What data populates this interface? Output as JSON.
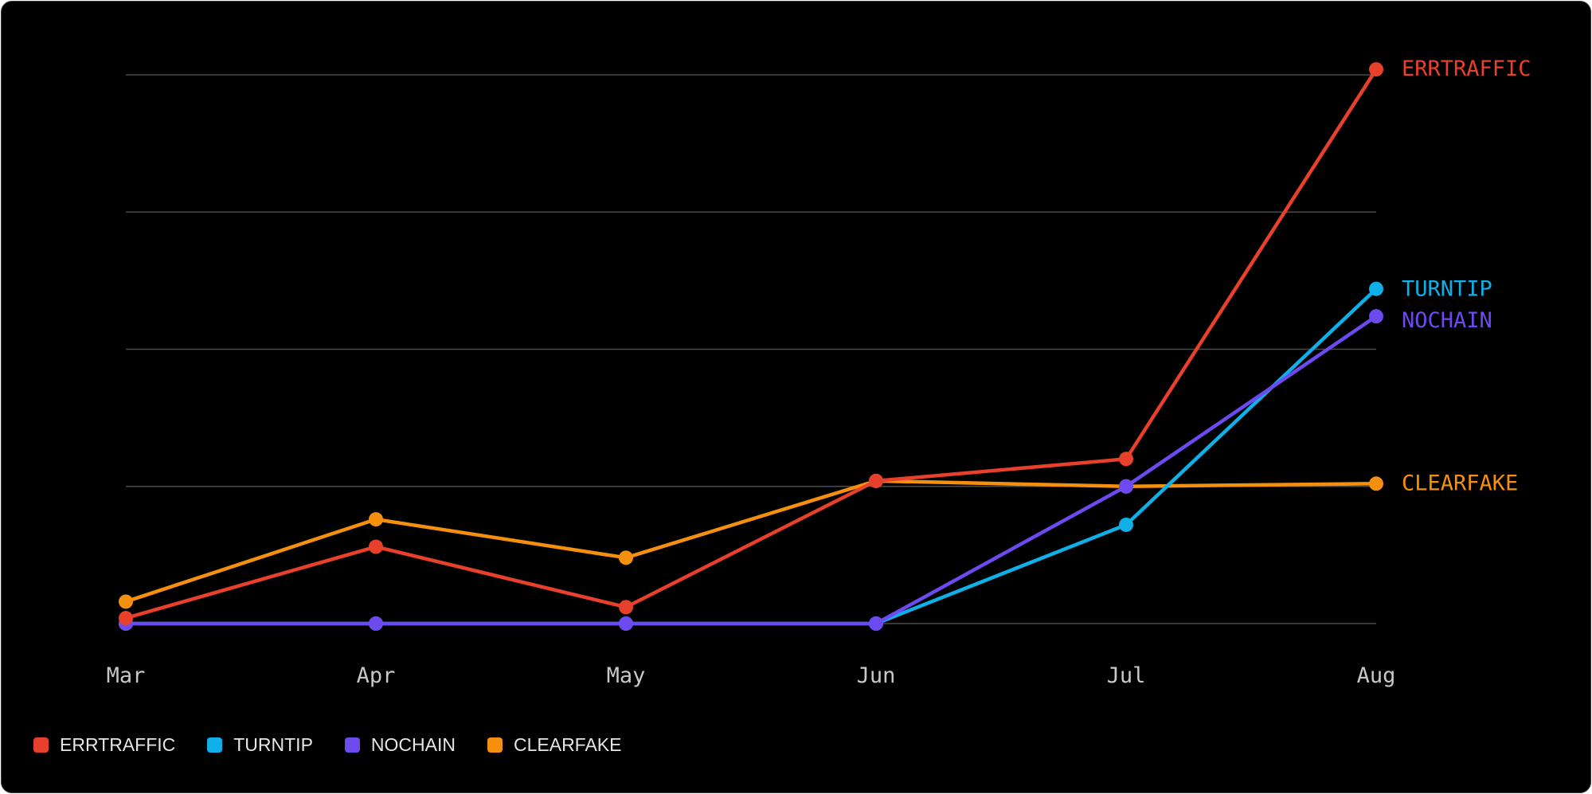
{
  "chart_data": {
    "type": "line",
    "title": "",
    "xlabel": "",
    "ylabel": "",
    "categories": [
      "Mar",
      "Apr",
      "May",
      "Jun",
      "Jul",
      "Aug"
    ],
    "ylim": [
      0,
      100
    ],
    "grid": true,
    "legend_position": "bottom-left",
    "series": [
      {
        "name": "ERRTRAFFIC",
        "color": "#e8402a",
        "values": [
          1,
          14,
          3,
          26,
          30,
          101
        ]
      },
      {
        "name": "TURNTIP",
        "color": "#0fb0e8",
        "values": [
          0,
          0,
          0,
          0,
          18,
          61
        ]
      },
      {
        "name": "NOCHAIN",
        "color": "#6d4af0",
        "values": [
          0,
          0,
          0,
          0,
          25,
          56
        ]
      },
      {
        "name": "CLEARFAKE",
        "color": "#f5900f",
        "values": [
          4,
          19,
          12,
          26,
          25,
          25.5
        ]
      }
    ]
  }
}
